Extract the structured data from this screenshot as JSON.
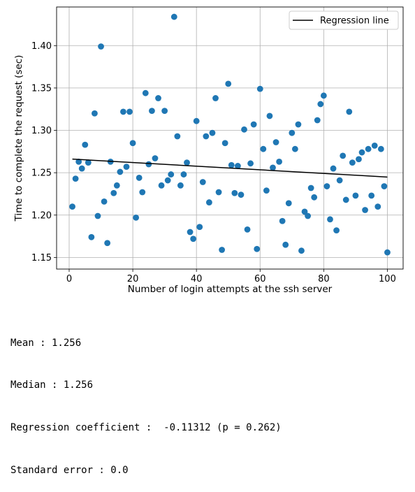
{
  "chart_data": {
    "type": "scatter",
    "title": "",
    "xlabel": "Number of login attempts at the ssh server",
    "ylabel": "Time to complete the request (sec)",
    "xlim": [
      -3.95,
      104.95
    ],
    "ylim": [
      1.1363,
      1.4456
    ],
    "grid": true,
    "legend_position": "top-right",
    "xticks": [
      0,
      20,
      40,
      60,
      80,
      100
    ],
    "yticks": [
      1.15,
      1.2,
      1.25,
      1.3,
      1.35,
      1.4
    ],
    "tick_labels_x": [
      "0",
      "20",
      "40",
      "60",
      "80",
      "100"
    ],
    "tick_labels_y": [
      "1.15",
      "1.20",
      "1.25",
      "1.30",
      "1.35",
      "1.40"
    ],
    "point_color": "#1f77b4",
    "line_color": "#000000",
    "series": [
      {
        "x": [
          1,
          2,
          3,
          4,
          5,
          6,
          7,
          8,
          9,
          10,
          11,
          12,
          13,
          14,
          15,
          16,
          17,
          18,
          19,
          20,
          21,
          22,
          23,
          24,
          25,
          26,
          27,
          28,
          29,
          30,
          31,
          32,
          33,
          34,
          35,
          36,
          37,
          38,
          39,
          40,
          41,
          42,
          43,
          44,
          45,
          46,
          47,
          48,
          49,
          50,
          51,
          52,
          53,
          54,
          55,
          56,
          57,
          58,
          59,
          60,
          61,
          62,
          63,
          64,
          65,
          66,
          67,
          68,
          69,
          70,
          71,
          72,
          73,
          74,
          75,
          76,
          77,
          78,
          79,
          80,
          81,
          82,
          83,
          84,
          85,
          86,
          87,
          88,
          89,
          90,
          91,
          92,
          93,
          94,
          95,
          96,
          97,
          98,
          99,
          100
        ],
        "y": [
          1.21,
          1.243,
          1.263,
          1.255,
          1.283,
          1.262,
          1.174,
          1.32,
          1.199,
          1.399,
          1.216,
          1.167,
          1.263,
          1.226,
          1.235,
          1.251,
          1.322,
          1.257,
          1.322,
          1.285,
          1.197,
          1.244,
          1.227,
          1.344,
          1.26,
          1.323,
          1.267,
          1.338,
          1.235,
          1.323,
          1.241,
          1.248,
          1.434,
          1.293,
          1.235,
          1.248,
          1.262,
          1.18,
          1.172,
          1.311,
          1.186,
          1.239,
          1.293,
          1.215,
          1.297,
          1.338,
          1.227,
          1.159,
          1.285,
          1.355,
          1.259,
          1.226,
          1.258,
          1.224,
          1.301,
          1.183,
          1.261,
          1.307,
          1.16,
          1.349,
          1.278,
          1.229,
          1.317,
          1.256,
          1.286,
          1.263,
          1.193,
          1.165,
          1.214,
          1.297,
          1.278,
          1.307,
          1.158,
          1.204,
          1.199,
          1.232,
          1.221,
          1.312,
          1.331,
          1.341,
          1.234,
          1.195,
          1.255,
          1.182,
          1.241,
          1.27,
          1.218,
          1.322,
          1.262,
          1.223,
          1.266,
          1.274,
          1.206,
          1.278,
          1.223,
          1.282,
          1.21,
          1.278,
          1.234,
          1.156
        ]
      }
    ],
    "regression": {
      "name": "Regression line",
      "x": [
        1,
        100
      ],
      "y": [
        1.2661,
        1.2449
      ]
    }
  },
  "stats": {
    "mean": "Mean : 1.256",
    "median": "Median : 1.256",
    "regression": "Regression coefficient :  -0.11312 (p = 0.262)",
    "stderr": "Standard error : 0.0"
  }
}
